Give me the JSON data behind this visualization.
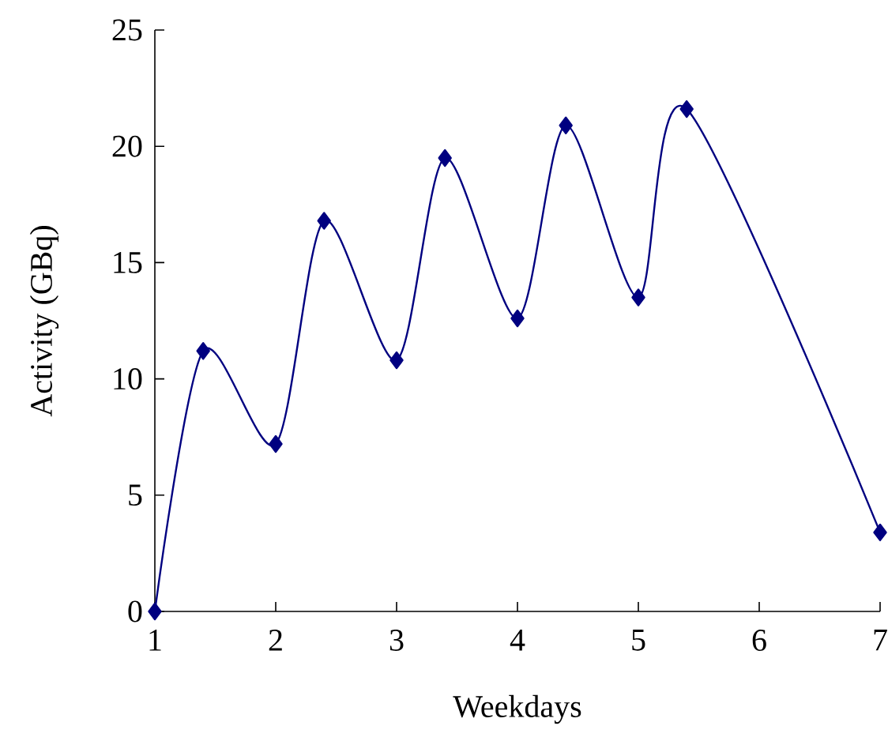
{
  "chart_data": {
    "type": "line",
    "xlabel": "Weekdays",
    "ylabel": "Activity (GBq)",
    "x": [
      1,
      1.4,
      2,
      2.4,
      3,
      3.4,
      4,
      4.4,
      5,
      5.4,
      7
    ],
    "values": [
      0,
      11.2,
      7.2,
      16.8,
      10.8,
      19.5,
      12.6,
      20.9,
      13.5,
      21.6,
      3.4
    ],
    "color": "#000080",
    "marker": "diamond",
    "line_style": "solid",
    "xlim": [
      1,
      7
    ],
    "xticks": [
      1,
      2,
      3,
      4,
      5,
      6,
      7
    ],
    "ylim": [
      0,
      25
    ],
    "yticks": [
      0,
      5,
      10,
      15,
      20,
      25
    ]
  }
}
